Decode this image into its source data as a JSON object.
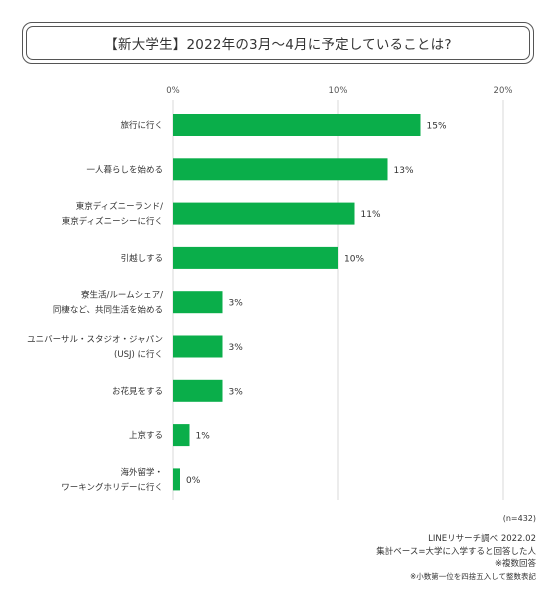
{
  "title": "【新大学生】2022年の3月〜4月に予定していることは?",
  "chart_data": {
    "type": "bar",
    "orientation": "horizontal",
    "title": "【新大学生】2022年の3月〜4月に予定していることは?",
    "xlim": [
      0,
      20
    ],
    "x_ticks": [
      "0%",
      "10%",
      "20%"
    ],
    "grid": true,
    "bar_color": "#0aae4a",
    "categories": [
      [
        "旅行に行く"
      ],
      [
        "一人暮らしを始める"
      ],
      [
        "東京ディズニーランド/",
        "東京ディズニーシーに行く"
      ],
      [
        "引越しする"
      ],
      [
        "寮生活/ルームシェア/",
        "同棲など、共同生活を始める"
      ],
      [
        "ユニバーサル・スタジオ・ジャパン",
        "(USJ) に行く"
      ],
      [
        "お花見をする"
      ],
      [
        "上京する"
      ],
      [
        "海外留学・",
        "ワーキングホリデーに行く"
      ]
    ],
    "values": [
      15,
      13,
      11,
      10,
      3,
      3,
      3,
      1,
      0
    ],
    "value_labels": [
      "15%",
      "13%",
      "11%",
      "10%",
      "3%",
      "3%",
      "3%",
      "1%",
      "0%"
    ]
  },
  "footer": {
    "n": "(n=432)",
    "source": "LINEリサーチ調べ 2022.02",
    "base": "集計ベース=大学に入学すると回答した人",
    "multi": "※複数回答",
    "rounding": "※小数第一位を四捨五入して整数表記"
  }
}
